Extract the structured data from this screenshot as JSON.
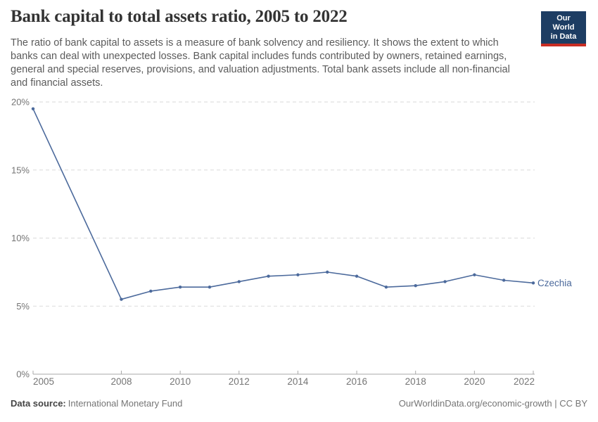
{
  "header": {
    "title": "Bank capital to total assets ratio, 2005 to 2022",
    "subtitle": "The ratio of bank capital to assets is a measure of bank solvency and resiliency. It shows the extent to which banks can deal with unexpected losses. Bank capital includes funds contributed by owners, retained earnings, general and special reserves, provisions, and valuation adjustments. Total bank assets include all non-financial and financial assets.",
    "logo": {
      "line1": "Our World",
      "line2": "in Data",
      "bg_color": "#1d3d63",
      "accent_color": "#c82d23"
    }
  },
  "chart_data": {
    "type": "line",
    "title": "Bank capital to total assets ratio, 2005 to 2022",
    "x": [
      2005,
      2008,
      2009,
      2010,
      2011,
      2012,
      2013,
      2014,
      2015,
      2016,
      2017,
      2018,
      2019,
      2020,
      2021,
      2022
    ],
    "series": [
      {
        "name": "Czechia",
        "color": "#4c6a9c",
        "values": [
          19.5,
          5.5,
          6.1,
          6.4,
          6.4,
          6.8,
          7.2,
          7.3,
          7.5,
          7.2,
          6.4,
          6.5,
          6.8,
          7.3,
          6.9,
          6.7
        ]
      }
    ],
    "xlabel": "",
    "ylabel": "",
    "xlim": [
      2005,
      2022
    ],
    "ylim": [
      0,
      20
    ],
    "y_ticks": [
      {
        "value": 0,
        "label": "0%"
      },
      {
        "value": 5,
        "label": "5%"
      },
      {
        "value": 10,
        "label": "10%"
      },
      {
        "value": 15,
        "label": "15%"
      },
      {
        "value": 20,
        "label": "20%"
      }
    ],
    "x_ticks": [
      {
        "value": 2005,
        "label": "2005"
      },
      {
        "value": 2008,
        "label": "2008"
      },
      {
        "value": 2010,
        "label": "2010"
      },
      {
        "value": 2012,
        "label": "2012"
      },
      {
        "value": 2014,
        "label": "2014"
      },
      {
        "value": 2016,
        "label": "2016"
      },
      {
        "value": 2018,
        "label": "2018"
      },
      {
        "value": 2020,
        "label": "2020"
      },
      {
        "value": 2022,
        "label": "2022"
      }
    ],
    "grid": "horizontal-dashed",
    "legend_position": "end-of-line",
    "unit": "%"
  },
  "footer": {
    "datasource_label": "Data source:",
    "datasource_value": "International Monetary Fund",
    "credit": "OurWorldinData.org/economic-growth | CC BY"
  }
}
